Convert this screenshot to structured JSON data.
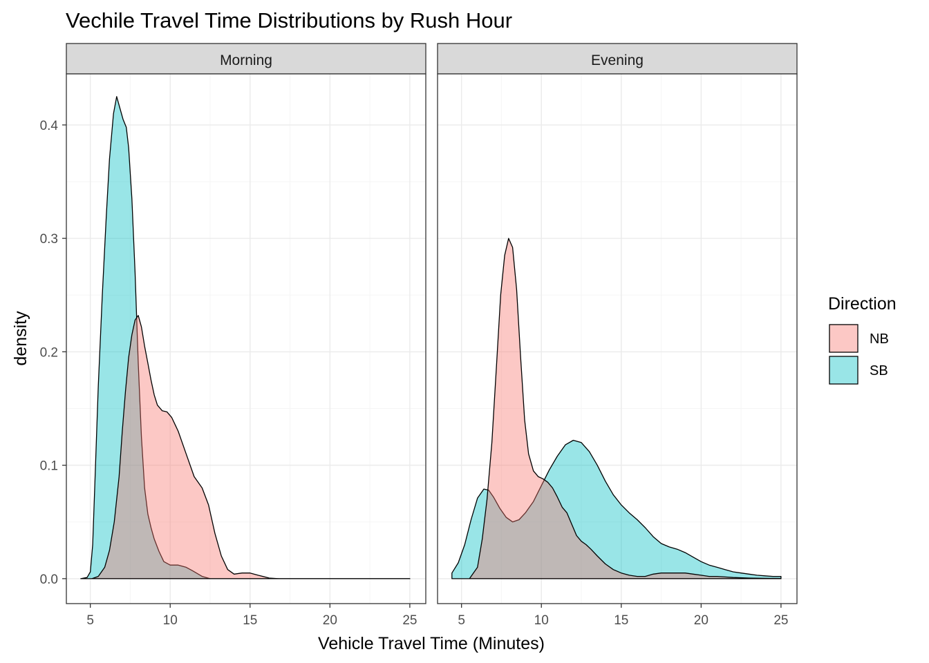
{
  "chart_data": {
    "type": "area",
    "title": "Vechile Travel Time Distributions by Rush Hour",
    "xlabel": "Vehicle Travel Time (Minutes)",
    "ylabel": "density",
    "xlim": [
      3.5,
      26
    ],
    "ylim": [
      -0.022,
      0.445
    ],
    "x_ticks": [
      5,
      10,
      15,
      20,
      25
    ],
    "x_tick_labels": [
      "5",
      "10",
      "15",
      "20",
      "25"
    ],
    "y_ticks": [
      0.0,
      0.1,
      0.2,
      0.3,
      0.4
    ],
    "y_tick_labels": [
      "0.0",
      "0.1",
      "0.2",
      "0.3",
      "0.4"
    ],
    "grid": true,
    "legend": {
      "title": "Direction",
      "position": "right",
      "entries": [
        {
          "label": "NB",
          "color": "#F8766D"
        },
        {
          "label": "SB",
          "color": "#00BFC4"
        }
      ]
    },
    "panels": [
      {
        "strip": "Morning",
        "series": [
          {
            "name": "SB",
            "color": "#00BFC4",
            "points": [
              [
                4.4,
                0
              ],
              [
                4.8,
                0.001
              ],
              [
                5.0,
                0.006
              ],
              [
                5.15,
                0.03
              ],
              [
                5.3,
                0.09
              ],
              [
                5.5,
                0.17
              ],
              [
                5.75,
                0.25
              ],
              [
                6.0,
                0.32
              ],
              [
                6.2,
                0.37
              ],
              [
                6.45,
                0.41
              ],
              [
                6.65,
                0.425
              ],
              [
                6.85,
                0.415
              ],
              [
                7.05,
                0.405
              ],
              [
                7.25,
                0.398
              ],
              [
                7.4,
                0.38
              ],
              [
                7.6,
                0.335
              ],
              [
                7.8,
                0.27
              ],
              [
                8.0,
                0.19
              ],
              [
                8.2,
                0.125
              ],
              [
                8.4,
                0.08
              ],
              [
                8.6,
                0.057
              ],
              [
                8.8,
                0.045
              ],
              [
                9.0,
                0.035
              ],
              [
                9.3,
                0.024
              ],
              [
                9.6,
                0.015
              ],
              [
                10.0,
                0.012
              ],
              [
                10.5,
                0.012
              ],
              [
                11.0,
                0.01
              ],
              [
                11.4,
                0.007
              ],
              [
                12.0,
                0.002
              ],
              [
                12.5,
                0
              ],
              [
                15,
                0
              ],
              [
                20,
                0
              ],
              [
                25,
                0
              ]
            ]
          },
          {
            "name": "NB",
            "color": "#F8766D",
            "points": [
              [
                5.1,
                0
              ],
              [
                5.5,
                0.002
              ],
              [
                5.9,
                0.01
              ],
              [
                6.2,
                0.025
              ],
              [
                6.5,
                0.05
              ],
              [
                6.8,
                0.09
              ],
              [
                7.0,
                0.13
              ],
              [
                7.2,
                0.165
              ],
              [
                7.4,
                0.195
              ],
              [
                7.6,
                0.215
              ],
              [
                7.8,
                0.228
              ],
              [
                8.0,
                0.232
              ],
              [
                8.2,
                0.222
              ],
              [
                8.4,
                0.205
              ],
              [
                8.6,
                0.19
              ],
              [
                8.8,
                0.175
              ],
              [
                9.0,
                0.162
              ],
              [
                9.2,
                0.153
              ],
              [
                9.5,
                0.148
              ],
              [
                9.8,
                0.147
              ],
              [
                10.1,
                0.142
              ],
              [
                10.5,
                0.13
              ],
              [
                11.0,
                0.11
              ],
              [
                11.5,
                0.09
              ],
              [
                12.0,
                0.08
              ],
              [
                12.4,
                0.065
              ],
              [
                12.8,
                0.04
              ],
              [
                13.2,
                0.02
              ],
              [
                13.6,
                0.008
              ],
              [
                14.0,
                0.004
              ],
              [
                14.5,
                0.005
              ],
              [
                15.0,
                0.005
              ],
              [
                15.5,
                0.003
              ],
              [
                16.2,
                0.0005
              ],
              [
                16.8,
                0
              ],
              [
                20,
                0
              ],
              [
                25,
                0
              ]
            ]
          }
        ]
      },
      {
        "strip": "Evening",
        "series": [
          {
            "name": "SB",
            "color": "#00BFC4",
            "points": [
              [
                4.4,
                0.005
              ],
              [
                4.8,
                0.014
              ],
              [
                5.2,
                0.03
              ],
              [
                5.6,
                0.052
              ],
              [
                6.0,
                0.071
              ],
              [
                6.4,
                0.079
              ],
              [
                6.7,
                0.078
              ],
              [
                7.0,
                0.072
              ],
              [
                7.4,
                0.062
              ],
              [
                7.8,
                0.054
              ],
              [
                8.2,
                0.05
              ],
              [
                8.6,
                0.052
              ],
              [
                9.0,
                0.058
              ],
              [
                9.5,
                0.068
              ],
              [
                10.0,
                0.082
              ],
              [
                10.5,
                0.096
              ],
              [
                11.0,
                0.108
              ],
              [
                11.5,
                0.118
              ],
              [
                12.0,
                0.122
              ],
              [
                12.5,
                0.12
              ],
              [
                13.0,
                0.112
              ],
              [
                13.5,
                0.1
              ],
              [
                14.0,
                0.086
              ],
              [
                14.5,
                0.074
              ],
              [
                15.0,
                0.065
              ],
              [
                15.5,
                0.058
              ],
              [
                16.0,
                0.052
              ],
              [
                16.5,
                0.045
              ],
              [
                17.0,
                0.037
              ],
              [
                17.5,
                0.031
              ],
              [
                18.0,
                0.028
              ],
              [
                18.5,
                0.026
              ],
              [
                19.0,
                0.023
              ],
              [
                19.5,
                0.019
              ],
              [
                20.0,
                0.015
              ],
              [
                20.5,
                0.012
              ],
              [
                21.0,
                0.01
              ],
              [
                21.5,
                0.008
              ],
              [
                22.0,
                0.006
              ],
              [
                22.5,
                0.005
              ],
              [
                23.0,
                0.004
              ],
              [
                23.5,
                0.003
              ],
              [
                24.0,
                0.0025
              ],
              [
                24.5,
                0.002
              ],
              [
                25.0,
                0.002
              ]
            ]
          },
          {
            "name": "NB",
            "color": "#F8766D",
            "points": [
              [
                5.5,
                0
              ],
              [
                6.0,
                0.01
              ],
              [
                6.3,
                0.035
              ],
              [
                6.6,
                0.07
              ],
              [
                6.9,
                0.12
              ],
              [
                7.2,
                0.19
              ],
              [
                7.45,
                0.25
              ],
              [
                7.7,
                0.285
              ],
              [
                7.95,
                0.3
              ],
              [
                8.2,
                0.292
              ],
              [
                8.45,
                0.255
              ],
              [
                8.7,
                0.195
              ],
              [
                8.95,
                0.14
              ],
              [
                9.2,
                0.11
              ],
              [
                9.5,
                0.095
              ],
              [
                9.8,
                0.09
              ],
              [
                10.1,
                0.088
              ],
              [
                10.4,
                0.085
              ],
              [
                10.7,
                0.08
              ],
              [
                11.0,
                0.072
              ],
              [
                11.3,
                0.063
              ],
              [
                11.6,
                0.058
              ],
              [
                11.9,
                0.048
              ],
              [
                12.2,
                0.038
              ],
              [
                12.5,
                0.033
              ],
              [
                12.8,
                0.03
              ],
              [
                13.1,
                0.026
              ],
              [
                13.5,
                0.02
              ],
              [
                14.0,
                0.013
              ],
              [
                14.5,
                0.008
              ],
              [
                15.0,
                0.005
              ],
              [
                15.5,
                0.003
              ],
              [
                16.0,
                0.002
              ],
              [
                16.5,
                0.002
              ],
              [
                17.0,
                0.004
              ],
              [
                17.5,
                0.005
              ],
              [
                18.0,
                0.005
              ],
              [
                18.5,
                0.005
              ],
              [
                19.0,
                0.005
              ],
              [
                19.5,
                0.004
              ],
              [
                20.0,
                0.003
              ],
              [
                20.5,
                0.002
              ],
              [
                21.0,
                0.002
              ],
              [
                21.5,
                0.0015
              ],
              [
                22.0,
                0.001
              ],
              [
                23.0,
                0.0005
              ],
              [
                24.0,
                0.0003
              ],
              [
                25.0,
                0.0002
              ]
            ]
          }
        ]
      }
    ]
  },
  "style": {
    "panel_border": "#333333",
    "strip_fill": "#d9d9d9",
    "grid_major": "#ebebeb",
    "grid_minor": "#f5f5f5",
    "fill_opacity": 0.4,
    "outline": "#000000"
  }
}
